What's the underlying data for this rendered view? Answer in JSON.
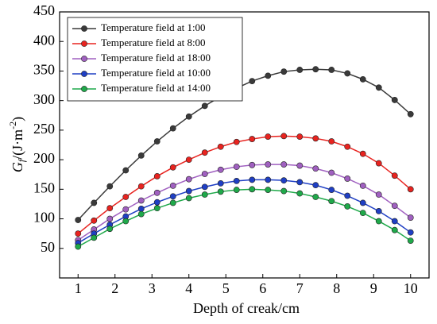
{
  "chart_data": {
    "type": "line",
    "xlabel": "Depth of creak/cm",
    "ylabel_parts": [
      "G",
      "f",
      "/(J·m",
      "-2",
      ")"
    ],
    "x": [
      1,
      1.43,
      1.86,
      2.29,
      2.71,
      3.14,
      3.57,
      4,
      4.43,
      4.86,
      5.29,
      5.71,
      6.14,
      6.57,
      7,
      7.43,
      7.86,
      8.29,
      8.71,
      9.14,
      9.57,
      10
    ],
    "series": [
      {
        "name": "Temperature field at 1:00",
        "color": "#3a3a3a",
        "values": [
          98,
          127,
          155,
          182,
          207,
          231,
          253,
          273,
          291,
          307,
          321,
          333,
          342,
          349,
          352,
          353,
          352,
          346,
          336,
          322,
          301,
          277
        ]
      },
      {
        "name": "Temperature field at 8:00",
        "color": "#e8231f",
        "values": [
          75,
          97,
          118,
          137,
          155,
          172,
          187,
          200,
          212,
          222,
          230,
          235,
          239,
          240,
          239,
          236,
          231,
          222,
          210,
          194,
          173,
          150
        ]
      },
      {
        "name": "Temperature field at 18:00",
        "color": "#a060c0",
        "values": [
          64,
          82,
          100,
          116,
          131,
          144,
          156,
          167,
          176,
          183,
          188,
          191,
          192,
          192,
          190,
          185,
          178,
          168,
          156,
          141,
          122,
          102
        ]
      },
      {
        "name": "Temperature field at 10:00",
        "color": "#1f3fc4",
        "values": [
          59,
          75,
          90,
          104,
          117,
          128,
          138,
          147,
          154,
          160,
          164,
          166,
          166,
          165,
          162,
          157,
          149,
          139,
          127,
          113,
          96,
          77
        ]
      },
      {
        "name": "Temperature field at 14:00",
        "color": "#1fa94a",
        "values": [
          53,
          68,
          83,
          96,
          108,
          118,
          127,
          135,
          141,
          146,
          149,
          150,
          149,
          147,
          143,
          137,
          130,
          121,
          110,
          96,
          81,
          63
        ]
      }
    ],
    "xlim": [
      0.5,
      10.5
    ],
    "xticks": [
      1,
      2,
      3,
      4,
      5,
      6,
      7,
      8,
      9,
      10
    ],
    "ylim": [
      0,
      450
    ],
    "yticks": [
      50,
      100,
      150,
      200,
      250,
      300,
      350,
      400,
      450
    ],
    "legend": "upper left"
  }
}
